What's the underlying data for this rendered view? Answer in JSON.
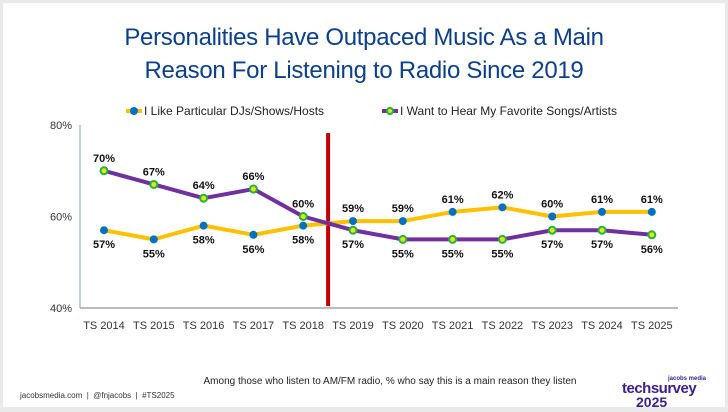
{
  "title_line1": "Personalities Have Outpaced Music As a Main",
  "title_line2": "Reason For Listening to Radio Since 2019",
  "footnote": "Among those who listen to AM/FM radio, % who say this is a main reason they listen",
  "credits": "jacobsmedia.com  |  @fnjacobs  |  #TS2025",
  "brand": {
    "small": "jacobs media",
    "main": "techsurvey",
    "year": "2025"
  },
  "colors": {
    "series1_line": "#FFC000",
    "series1_marker": "#0070C0",
    "series2_line": "#7030A0",
    "series2_marker": "#22B04A",
    "series2_marker_center": "#E6E600",
    "divider": "#C00000",
    "title": "#0B3F8C"
  },
  "chart_data": {
    "type": "line",
    "title": "Personalities Have Outpaced Music As a Main Reason For Listening to Radio Since 2019",
    "xlabel": "",
    "ylabel": "",
    "ylim": [
      40,
      80
    ],
    "yticks": [
      "40%",
      "60%",
      "80%"
    ],
    "ytick_values": [
      40,
      60,
      80
    ],
    "grid": false,
    "legend_position": "top",
    "categories": [
      "TS 2014",
      "TS 2015",
      "TS 2016",
      "TS 2017",
      "TS 2018",
      "TS 2019",
      "TS 2020",
      "TS 2021",
      "TS 2022",
      "TS 2023",
      "TS 2024",
      "TS 2025"
    ],
    "series": [
      {
        "name": "I Like Particular DJs/Shows/Hosts",
        "values": [
          57,
          55,
          58,
          56,
          58,
          59,
          59,
          61,
          62,
          60,
          61,
          61
        ],
        "labels": [
          "57%",
          "55%",
          "58%",
          "56%",
          "58%",
          "59%",
          "59%",
          "61%",
          "62%",
          "60%",
          "61%",
          "61%"
        ]
      },
      {
        "name": "I Want to Hear My Favorite Songs/Artists",
        "values": [
          70,
          67,
          64,
          66,
          60,
          57,
          55,
          55,
          55,
          57,
          57,
          56
        ],
        "labels": [
          "70%",
          "67%",
          "64%",
          "66%",
          "60%",
          "57%",
          "55%",
          "55%",
          "55%",
          "57%",
          "57%",
          "56%"
        ]
      }
    ],
    "annotations": [
      {
        "type": "vertical-line",
        "between": [
          "TS 2018",
          "TS 2019"
        ]
      }
    ]
  }
}
